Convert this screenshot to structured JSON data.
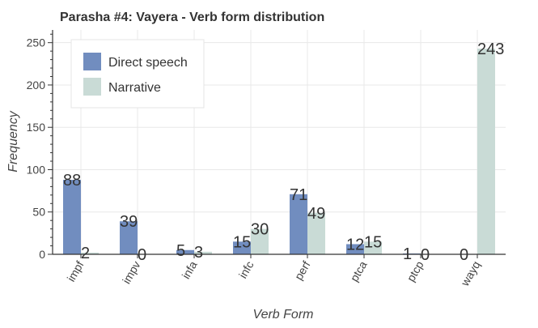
{
  "chart_data": {
    "type": "bar",
    "title": "Parasha #4: Vayera - Verb form distribution",
    "xlabel": "Verb Form",
    "ylabel": "Frequency",
    "categories": [
      "impf",
      "impv",
      "infa",
      "infc",
      "perf",
      "ptca",
      "ptcp",
      "wayq"
    ],
    "series": [
      {
        "name": "Direct speech",
        "color": "#718dbf",
        "values": [
          88,
          39,
          5,
          15,
          71,
          12,
          1,
          0
        ]
      },
      {
        "name": "Narrative",
        "color": "#c9dbd6",
        "values": [
          2,
          0,
          3,
          30,
          49,
          15,
          0,
          243
        ]
      }
    ],
    "ylim": [
      0,
      265
    ],
    "yticks": [
      0,
      50,
      100,
      150,
      200,
      250
    ],
    "grid": true,
    "legend_position": "top-left"
  }
}
